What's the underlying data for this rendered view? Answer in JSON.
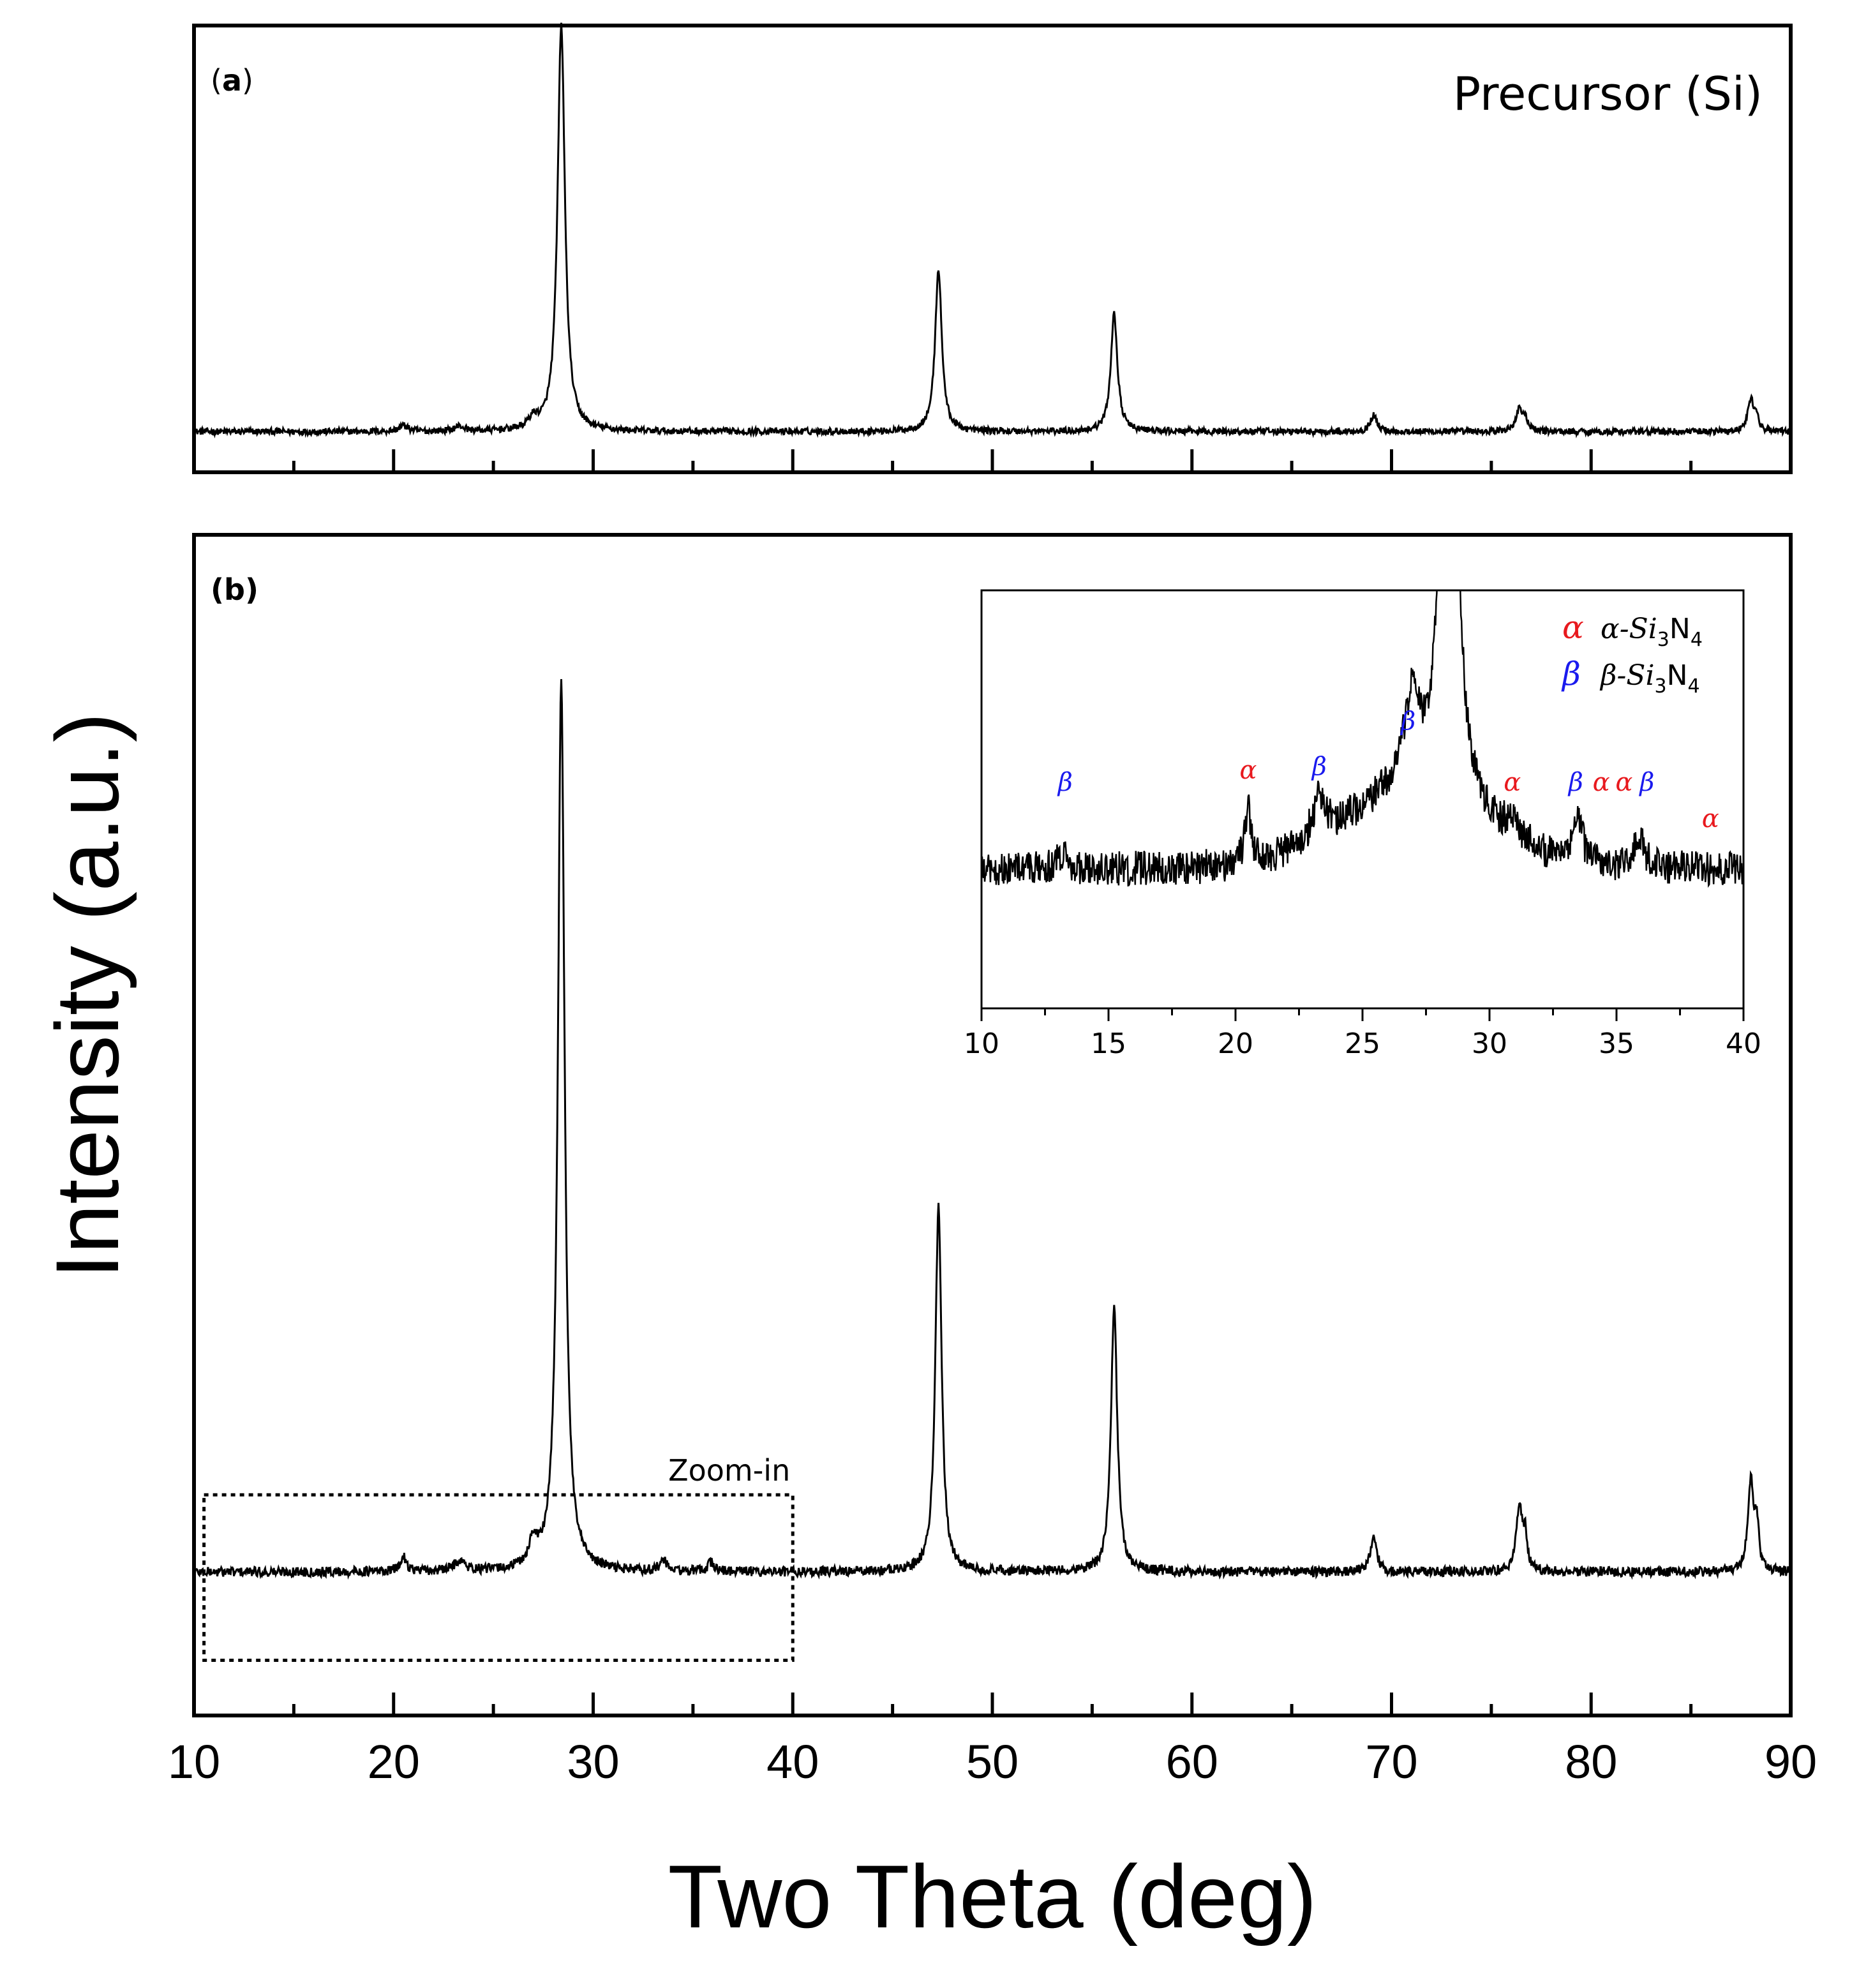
{
  "figure": {
    "shared_xlabel": "Two Theta (deg)",
    "shared_ylabel": "Intensity (a.u.)",
    "x_ticks": [
      "10",
      "20",
      "30",
      "40",
      "50",
      "60",
      "70",
      "80",
      "90"
    ]
  },
  "colors": {
    "alpha": "#e8191e",
    "beta": "#1a1aee",
    "line": "#000000"
  },
  "chart_data": [
    {
      "id": "a",
      "type": "line",
      "panel_label": "(a)",
      "title": "Precursor (Si)",
      "xlabel": "Two Theta (deg)",
      "ylabel": "Intensity (a.u.)",
      "xlim": [
        10,
        90
      ],
      "ylim": [
        0,
        110
      ],
      "baseline": 10,
      "noise": 0.8,
      "peaks": [
        {
          "x": 28.4,
          "height": 100,
          "width": 0.22
        },
        {
          "x": 47.3,
          "height": 40,
          "width": 0.2
        },
        {
          "x": 56.1,
          "height": 29,
          "width": 0.2
        },
        {
          "x": 69.1,
          "height": 4,
          "width": 0.2
        },
        {
          "x": 76.4,
          "height": 5.5,
          "width": 0.2
        },
        {
          "x": 76.7,
          "height": 2.5,
          "width": 0.15
        },
        {
          "x": 88.0,
          "height": 8,
          "width": 0.18
        },
        {
          "x": 88.3,
          "height": 3,
          "width": 0.12
        },
        {
          "x": 27.0,
          "height": 2.5,
          "width": 0.3
        },
        {
          "x": 20.5,
          "height": 1.5,
          "width": 0.25
        },
        {
          "x": 23.3,
          "height": 1.2,
          "width": 0.3
        }
      ]
    },
    {
      "id": "b",
      "type": "line",
      "panel_label": "(b)",
      "annotation": "Zoom-in",
      "zoom_region": {
        "x": [
          10.5,
          40
        ],
        "y": [
          -3,
          12
        ]
      },
      "xlabel": "Two Theta (deg)",
      "ylabel": "Intensity (a.u.)",
      "xlim": [
        10,
        90
      ],
      "ylim": [
        -8,
        99
      ],
      "baseline": 5,
      "noise": 0.45,
      "peaks": [
        {
          "x": 28.4,
          "height": 81,
          "width": 0.2
        },
        {
          "x": 47.3,
          "height": 33,
          "width": 0.19
        },
        {
          "x": 56.1,
          "height": 24,
          "width": 0.19
        },
        {
          "x": 69.1,
          "height": 3.4,
          "width": 0.18
        },
        {
          "x": 76.4,
          "height": 6,
          "width": 0.18
        },
        {
          "x": 76.7,
          "height": 3,
          "width": 0.12
        },
        {
          "x": 88.0,
          "height": 8,
          "width": 0.17
        },
        {
          "x": 88.3,
          "height": 4,
          "width": 0.12
        },
        {
          "x": 27.0,
          "height": 2.2,
          "width": 0.25
        },
        {
          "x": 20.5,
          "height": 1.3,
          "width": 0.2
        },
        {
          "x": 23.3,
          "height": 1.0,
          "width": 0.3
        },
        {
          "x": 33.5,
          "height": 1.0,
          "width": 0.2
        },
        {
          "x": 35.9,
          "height": 0.8,
          "width": 0.2
        }
      ]
    },
    {
      "id": "inset",
      "type": "line",
      "xlim": [
        10,
        40
      ],
      "ylim": [
        -8,
        16
      ],
      "x_ticks": [
        "10",
        "15",
        "20",
        "25",
        "30",
        "35",
        "40"
      ],
      "baseline": 0,
      "noise": 1.0,
      "broad_hump": {
        "x": 27,
        "height": 4,
        "width": 4
      },
      "peaks": [
        {
          "x": 28.4,
          "height": 80,
          "width": 0.2
        },
        {
          "x": 27.0,
          "height": 4,
          "width": 0.25
        },
        {
          "x": 26.8,
          "height": 2,
          "width": 0.6
        },
        {
          "x": 20.5,
          "height": 3,
          "width": 0.15
        },
        {
          "x": 23.3,
          "height": 2.5,
          "width": 0.3
        },
        {
          "x": 33.5,
          "height": 2.5,
          "width": 0.2
        },
        {
          "x": 35.9,
          "height": 2,
          "width": 0.2
        },
        {
          "x": 30.9,
          "height": 1,
          "width": 0.3
        },
        {
          "x": 13.2,
          "height": 1,
          "width": 0.2
        }
      ],
      "legend": [
        {
          "symbol": "α",
          "label_pre": "α-Si",
          "sub1": "3",
          "mid": "N",
          "sub2": "4",
          "color_key": "alpha"
        },
        {
          "symbol": "β",
          "label_pre": "β-Si",
          "sub1": "3",
          "mid": "N",
          "sub2": "4",
          "color_key": "beta"
        }
      ],
      "phase_labels": [
        {
          "symbol": "β",
          "x": 13.3,
          "y": 4.5,
          "color_key": "beta"
        },
        {
          "symbol": "α",
          "x": 20.5,
          "y": 5.2,
          "color_key": "alpha"
        },
        {
          "symbol": "β",
          "x": 23.3,
          "y": 5.4,
          "color_key": "beta"
        },
        {
          "symbol": "β",
          "x": 26.8,
          "y": 8.0,
          "color_key": "beta"
        },
        {
          "symbol": "α",
          "x": 30.9,
          "y": 4.5,
          "color_key": "alpha"
        },
        {
          "symbol": "β",
          "x": 33.4,
          "y": 4.5,
          "color_key": "beta"
        },
        {
          "symbol": "α",
          "x": 34.4,
          "y": 4.5,
          "color_key": "alpha"
        },
        {
          "symbol": "α",
          "x": 35.3,
          "y": 4.5,
          "color_key": "alpha"
        },
        {
          "symbol": "β",
          "x": 36.2,
          "y": 4.5,
          "color_key": "beta"
        },
        {
          "symbol": "α",
          "x": 38.7,
          "y": 2.4,
          "color_key": "alpha"
        }
      ]
    }
  ]
}
